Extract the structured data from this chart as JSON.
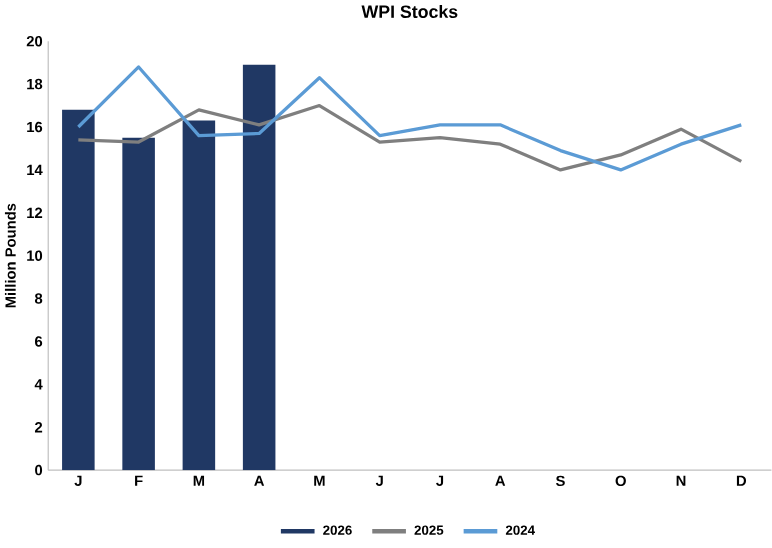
{
  "chart_data": {
    "type": "bar",
    "title": "WPI Stocks",
    "ylabel": "Million Pounds",
    "categories": [
      "J",
      "F",
      "M",
      "A",
      "M",
      "J",
      "J",
      "A",
      "S",
      "O",
      "N",
      "D"
    ],
    "series": [
      {
        "name": "2026",
        "color": "#203864",
        "values": [
          16.8,
          15.5,
          16.3,
          18.9,
          null,
          null,
          null,
          null,
          null,
          null,
          null,
          null
        ]
      },
      {
        "name": "2025",
        "type": "line",
        "color": "#7f7f7f",
        "values": [
          15.4,
          15.3,
          16.8,
          16.1,
          17.0,
          15.3,
          15.5,
          15.2,
          14.0,
          14.7,
          15.9,
          14.4
        ]
      },
      {
        "name": "2024",
        "type": "line",
        "color": "#5b9bd5",
        "values": [
          16.0,
          18.8,
          15.6,
          15.7,
          18.3,
          15.6,
          16.1,
          16.1,
          14.9,
          14.0,
          15.2,
          16.1
        ]
      }
    ],
    "ylim": [
      0,
      20
    ],
    "yticks": [
      0,
      2,
      4,
      6,
      8,
      10,
      12,
      14,
      16,
      18,
      20
    ],
    "legend": "bottom",
    "grid": false
  }
}
